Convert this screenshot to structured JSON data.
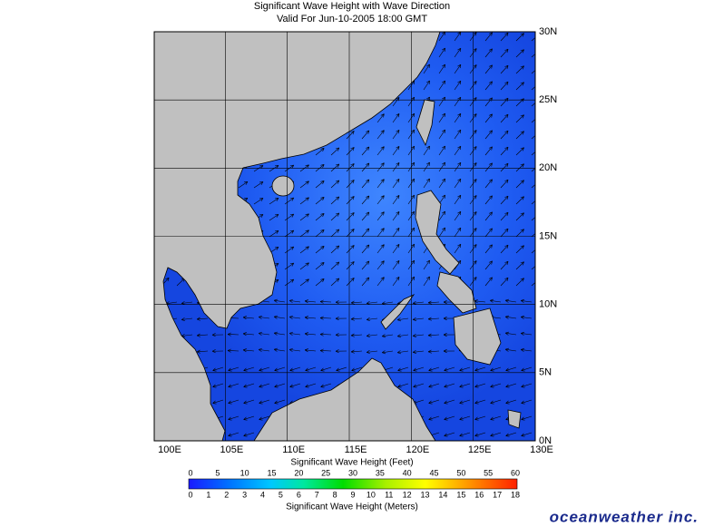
{
  "title": "Significant Wave Height with Wave Direction",
  "subtitle": "Valid For Jun-10-2005 18:00 GMT",
  "longitude_labels": [
    "100E",
    "105E",
    "110E",
    "115E",
    "120E",
    "125E",
    "130E"
  ],
  "latitude_labels": [
    "30N",
    "25N",
    "20N",
    "15N",
    "10N",
    "5N",
    "0N"
  ],
  "legend": {
    "feet_label": "Significant Wave Height (Feet)",
    "feet_ticks": [
      0,
      5,
      10,
      15,
      20,
      25,
      30,
      35,
      40,
      45,
      50,
      55,
      60
    ],
    "meter_label": "Significant Wave Height (Meters)",
    "meter_ticks": [
      0,
      1,
      2,
      3,
      4,
      5,
      6,
      7,
      8,
      9,
      10,
      11,
      12,
      13,
      14,
      15,
      16,
      17,
      18
    ]
  },
  "logo": "oceanweather inc."
}
